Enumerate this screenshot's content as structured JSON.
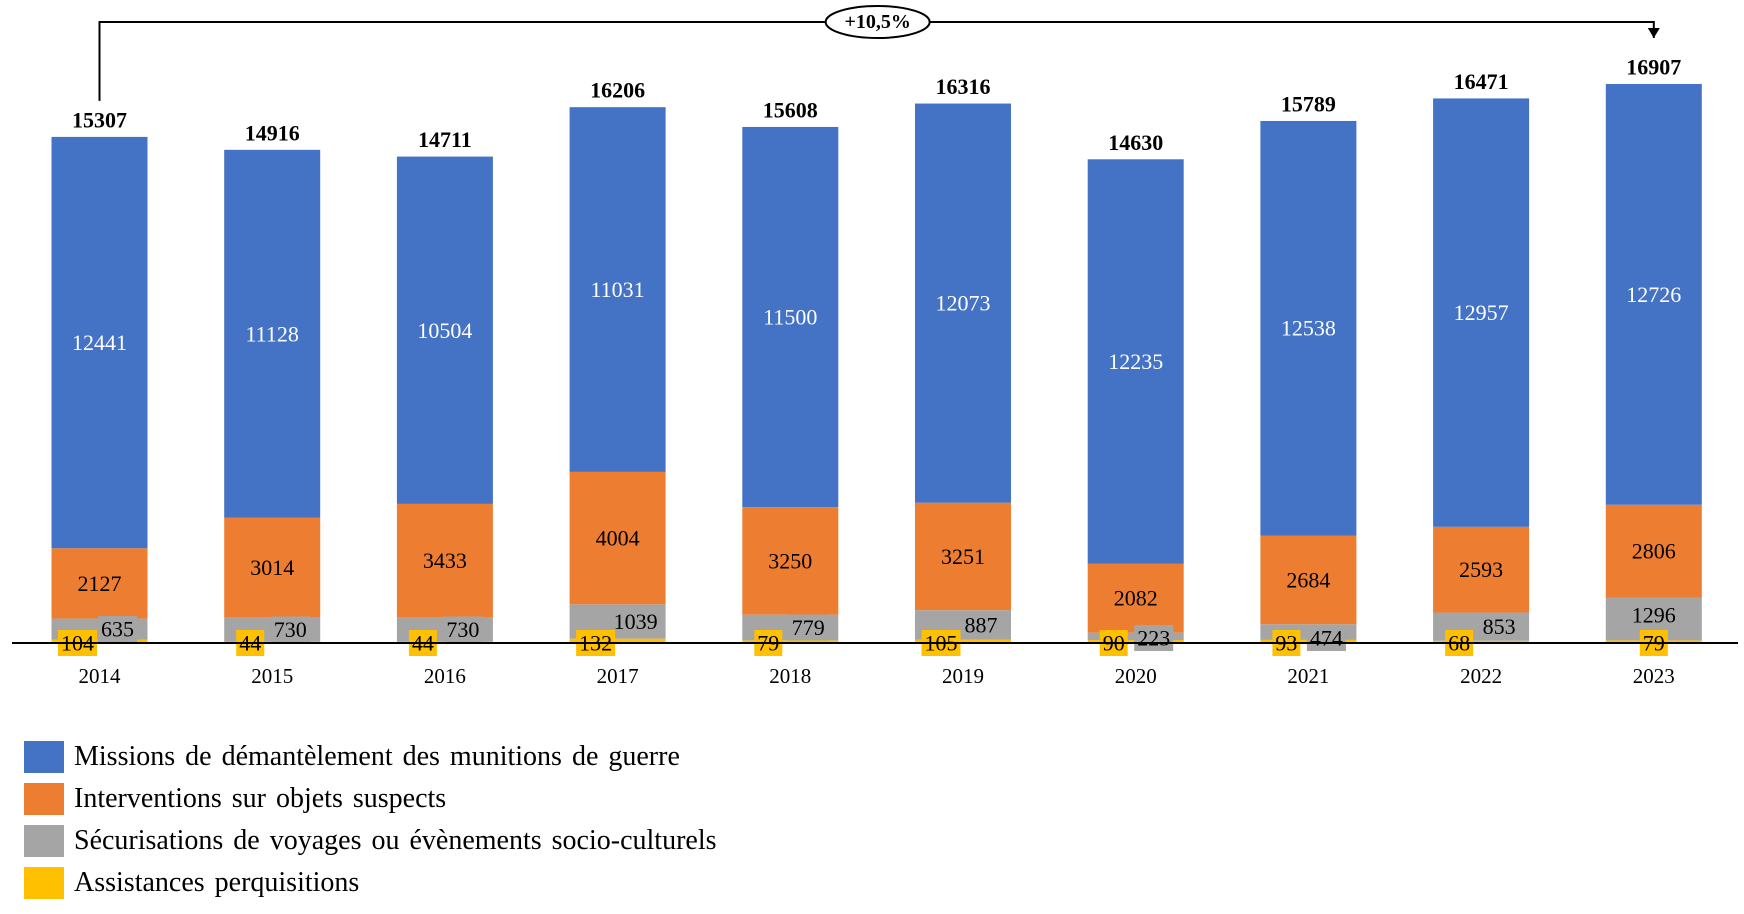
{
  "chart_data": {
    "type": "bar",
    "stacked": true,
    "categories": [
      "2014",
      "2015",
      "2016",
      "2017",
      "2018",
      "2019",
      "2020",
      "2021",
      "2022",
      "2023"
    ],
    "series": [
      {
        "name": "Assistances perquisitions",
        "color": "#FFC000",
        "values": [
          104,
          44,
          44,
          132,
          79,
          105,
          90,
          93,
          68,
          79
        ]
      },
      {
        "name": "Sécurisations de voyages ou évènements socio-culturels",
        "color": "#A5A5A5",
        "values": [
          635,
          730,
          730,
          1039,
          779,
          887,
          223,
          474,
          853,
          1296
        ]
      },
      {
        "name": "Interventions sur objets suspects",
        "color": "#ED7D31",
        "values": [
          2127,
          3014,
          3433,
          4004,
          3250,
          3251,
          2082,
          2684,
          2593,
          2806
        ]
      },
      {
        "name": "Missions de démantèlement des munitions de guerre",
        "color": "#4472C4",
        "values": [
          12441,
          11128,
          10504,
          11031,
          11500,
          12073,
          12235,
          12538,
          12957,
          12726
        ]
      }
    ],
    "totals": [
      15307,
      14916,
      14711,
      16206,
      15608,
      16316,
      14630,
      15789,
      16471,
      16907
    ],
    "annotation": {
      "label": "+10,5%",
      "from": "2014",
      "to": "2023"
    },
    "ylim": [
      0,
      17500
    ],
    "grid": false,
    "legend_position": "bottom-left",
    "legend_order": [
      3,
      2,
      1,
      0
    ]
  }
}
